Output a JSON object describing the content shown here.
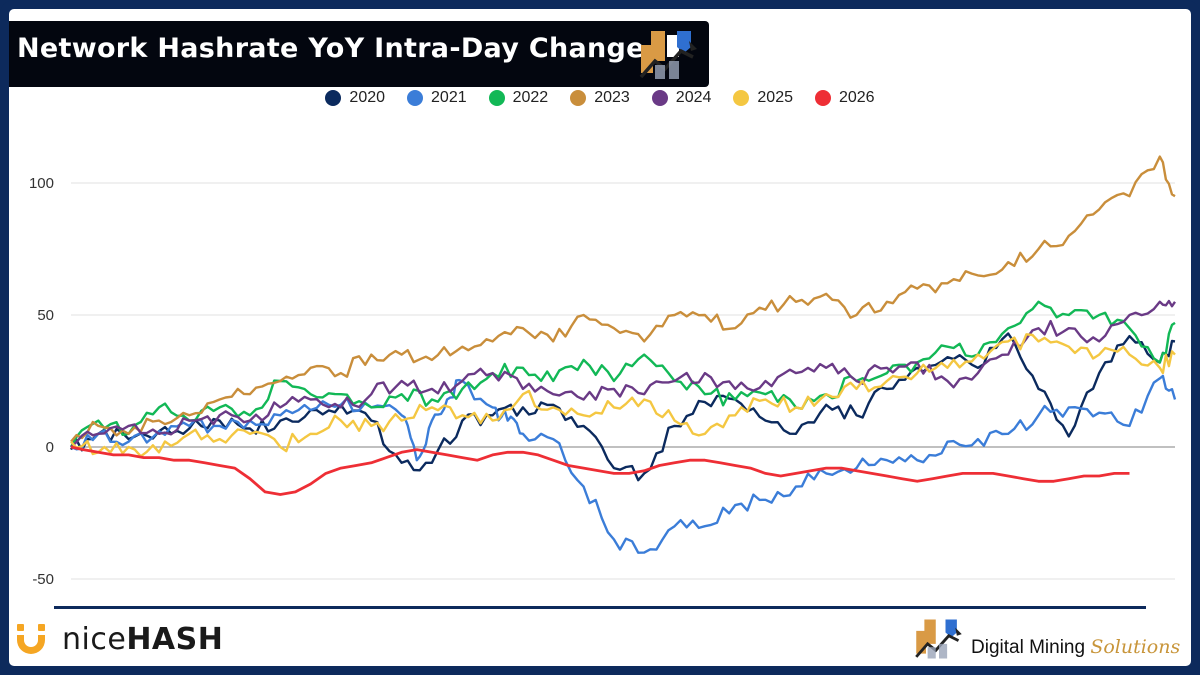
{
  "title": "Network Hashrate YoY Intra-Day Change",
  "branding": {
    "left_logo_light": "nice",
    "left_logo_bold": "HASH",
    "right_logo_primary": "Digital Mining ",
    "right_logo_secondary": "Solutions"
  },
  "chart_data": {
    "type": "line",
    "title": "Network Hashrate YoY Intra-Day Change",
    "xlabel": "",
    "ylabel": "",
    "ylim": [
      -50,
      120
    ],
    "yticks": [
      -50,
      0,
      50,
      100
    ],
    "ytick_labels": [
      "-50",
      "0",
      "50",
      "100"
    ],
    "grid": true,
    "legend_position": "top-center",
    "x_description": "day of year",
    "xlim": [
      1,
      365
    ],
    "series": [
      {
        "name": "2020",
        "color": "#0b2a5e",
        "x": [
          1,
          10,
          20,
          30,
          40,
          50,
          60,
          70,
          80,
          90,
          100,
          110,
          120,
          130,
          140,
          150,
          160,
          170,
          180,
          190,
          200,
          210,
          220,
          230,
          240,
          250,
          260,
          270,
          280,
          290,
          300,
          310,
          320,
          330,
          340,
          350,
          360,
          365
        ],
        "y": [
          -1,
          5,
          3,
          6,
          7,
          10,
          7,
          10,
          14,
          16,
          10,
          -6,
          -6,
          10,
          12,
          15,
          16,
          8,
          -8,
          -10,
          8,
          17,
          18,
          10,
          5,
          16,
          12,
          22,
          30,
          34,
          30,
          43,
          22,
          4,
          28,
          42,
          32,
          40
        ]
      },
      {
        "name": "2021",
        "color": "#3b7dd8",
        "x": [
          1,
          10,
          20,
          30,
          40,
          50,
          60,
          70,
          80,
          90,
          100,
          110,
          115,
          120,
          125,
          130,
          140,
          145,
          150,
          160,
          170,
          180,
          190,
          200,
          210,
          220,
          230,
          240,
          250,
          260,
          270,
          280,
          290,
          300,
          310,
          320,
          330,
          340,
          350,
          360,
          365
        ],
        "y": [
          0,
          5,
          2,
          6,
          8,
          8,
          10,
          12,
          14,
          16,
          15,
          12,
          -5,
          10,
          18,
          25,
          15,
          10,
          5,
          3,
          -15,
          -35,
          -40,
          -30,
          -30,
          -22,
          -20,
          -15,
          -10,
          -8,
          -5,
          -5,
          2,
          3,
          5,
          12,
          15,
          13,
          8,
          26,
          18
        ]
      },
      {
        "name": "2022",
        "color": "#12b856",
        "x": [
          1,
          10,
          20,
          30,
          40,
          50,
          60,
          70,
          80,
          90,
          100,
          110,
          120,
          130,
          140,
          150,
          160,
          170,
          180,
          190,
          200,
          210,
          220,
          230,
          240,
          250,
          260,
          270,
          280,
          290,
          300,
          310,
          320,
          330,
          340,
          350,
          360,
          365
        ],
        "y": [
          0,
          10,
          5,
          15,
          10,
          15,
          12,
          25,
          20,
          20,
          15,
          20,
          18,
          22,
          28,
          30,
          25,
          33,
          25,
          35,
          25,
          20,
          18,
          20,
          15,
          20,
          25,
          28,
          32,
          38,
          35,
          45,
          55,
          50,
          50,
          45,
          32,
          47
        ]
      },
      {
        "name": "2023",
        "color": "#c98e3b",
        "x": [
          1,
          10,
          20,
          30,
          40,
          50,
          60,
          70,
          80,
          90,
          100,
          110,
          120,
          130,
          140,
          150,
          160,
          170,
          180,
          190,
          200,
          210,
          220,
          230,
          240,
          250,
          260,
          270,
          280,
          290,
          300,
          310,
          320,
          330,
          340,
          350,
          360,
          365
        ],
        "y": [
          2,
          8,
          5,
          10,
          12,
          18,
          20,
          25,
          30,
          28,
          35,
          35,
          33,
          38,
          40,
          45,
          40,
          50,
          45,
          40,
          50,
          50,
          45,
          52,
          55,
          58,
          50,
          55,
          60,
          62,
          65,
          70,
          75,
          80,
          90,
          95,
          110,
          95
        ]
      },
      {
        "name": "2024",
        "color": "#6a3a86",
        "x": [
          1,
          10,
          20,
          30,
          40,
          50,
          60,
          70,
          80,
          90,
          100,
          110,
          120,
          130,
          140,
          150,
          160,
          170,
          180,
          190,
          200,
          210,
          220,
          230,
          240,
          250,
          260,
          270,
          280,
          290,
          300,
          310,
          320,
          330,
          340,
          350,
          360,
          365
        ],
        "y": [
          0,
          5,
          8,
          5,
          10,
          12,
          10,
          15,
          18,
          15,
          20,
          25,
          22,
          25,
          28,
          22,
          20,
          18,
          22,
          20,
          25,
          28,
          22,
          25,
          28,
          30,
          25,
          30,
          32,
          25,
          28,
          35,
          45,
          45,
          40,
          50,
          55,
          55
        ]
      },
      {
        "name": "2025",
        "color": "#f4c742",
        "x": [
          1,
          10,
          20,
          30,
          40,
          50,
          60,
          70,
          80,
          90,
          100,
          110,
          120,
          130,
          140,
          150,
          160,
          170,
          180,
          190,
          200,
          210,
          220,
          230,
          240,
          250,
          260,
          270,
          280,
          290,
          300,
          310,
          320,
          330,
          340,
          350,
          360,
          365
        ],
        "y": [
          2,
          -2,
          0,
          -2,
          5,
          3,
          5,
          0,
          5,
          10,
          8,
          10,
          15,
          12,
          10,
          20,
          15,
          12,
          15,
          18,
          10,
          5,
          12,
          18,
          15,
          20,
          22,
          25,
          28,
          30,
          35,
          40,
          40,
          38,
          35,
          35,
          30,
          35
        ]
      },
      {
        "name": "2026",
        "color": "#ee2e35",
        "x": [
          1,
          5,
          10,
          15,
          20,
          25,
          30,
          35,
          40,
          45,
          50,
          55,
          60,
          65,
          70,
          75,
          80,
          85,
          90,
          95,
          100,
          105,
          110,
          115,
          120,
          125,
          130,
          135,
          140,
          145,
          150,
          155,
          160,
          165,
          170,
          175,
          180,
          185,
          190,
          195,
          200,
          205,
          210,
          215,
          220,
          225,
          230,
          235,
          240,
          245,
          250,
          255,
          260,
          265,
          270,
          275,
          280,
          285,
          290,
          295,
          300,
          305,
          310,
          315,
          320,
          325,
          330,
          335,
          340,
          345,
          350
        ],
        "y": [
          0,
          -1,
          -2,
          -3,
          -3,
          -4,
          -4,
          -5,
          -5,
          -6,
          -7,
          -8,
          -12,
          -17,
          -18,
          -17,
          -14,
          -10,
          -8,
          -7,
          -6,
          -4,
          -2,
          -1,
          -2,
          -3,
          -4,
          -5,
          -3,
          -2,
          -2,
          -3,
          -5,
          -7,
          -8,
          -9,
          -10,
          -10,
          -9,
          -7,
          -6,
          -5,
          -5,
          -6,
          -7,
          -8,
          -10,
          -11,
          -10,
          -9,
          -8,
          -8,
          -9,
          -10,
          -11,
          -12,
          -13,
          -12,
          -11,
          -10,
          -10,
          -10,
          -11,
          -12,
          -13,
          -13,
          -12,
          -11,
          -11,
          -10,
          -10
        ]
      }
    ]
  }
}
